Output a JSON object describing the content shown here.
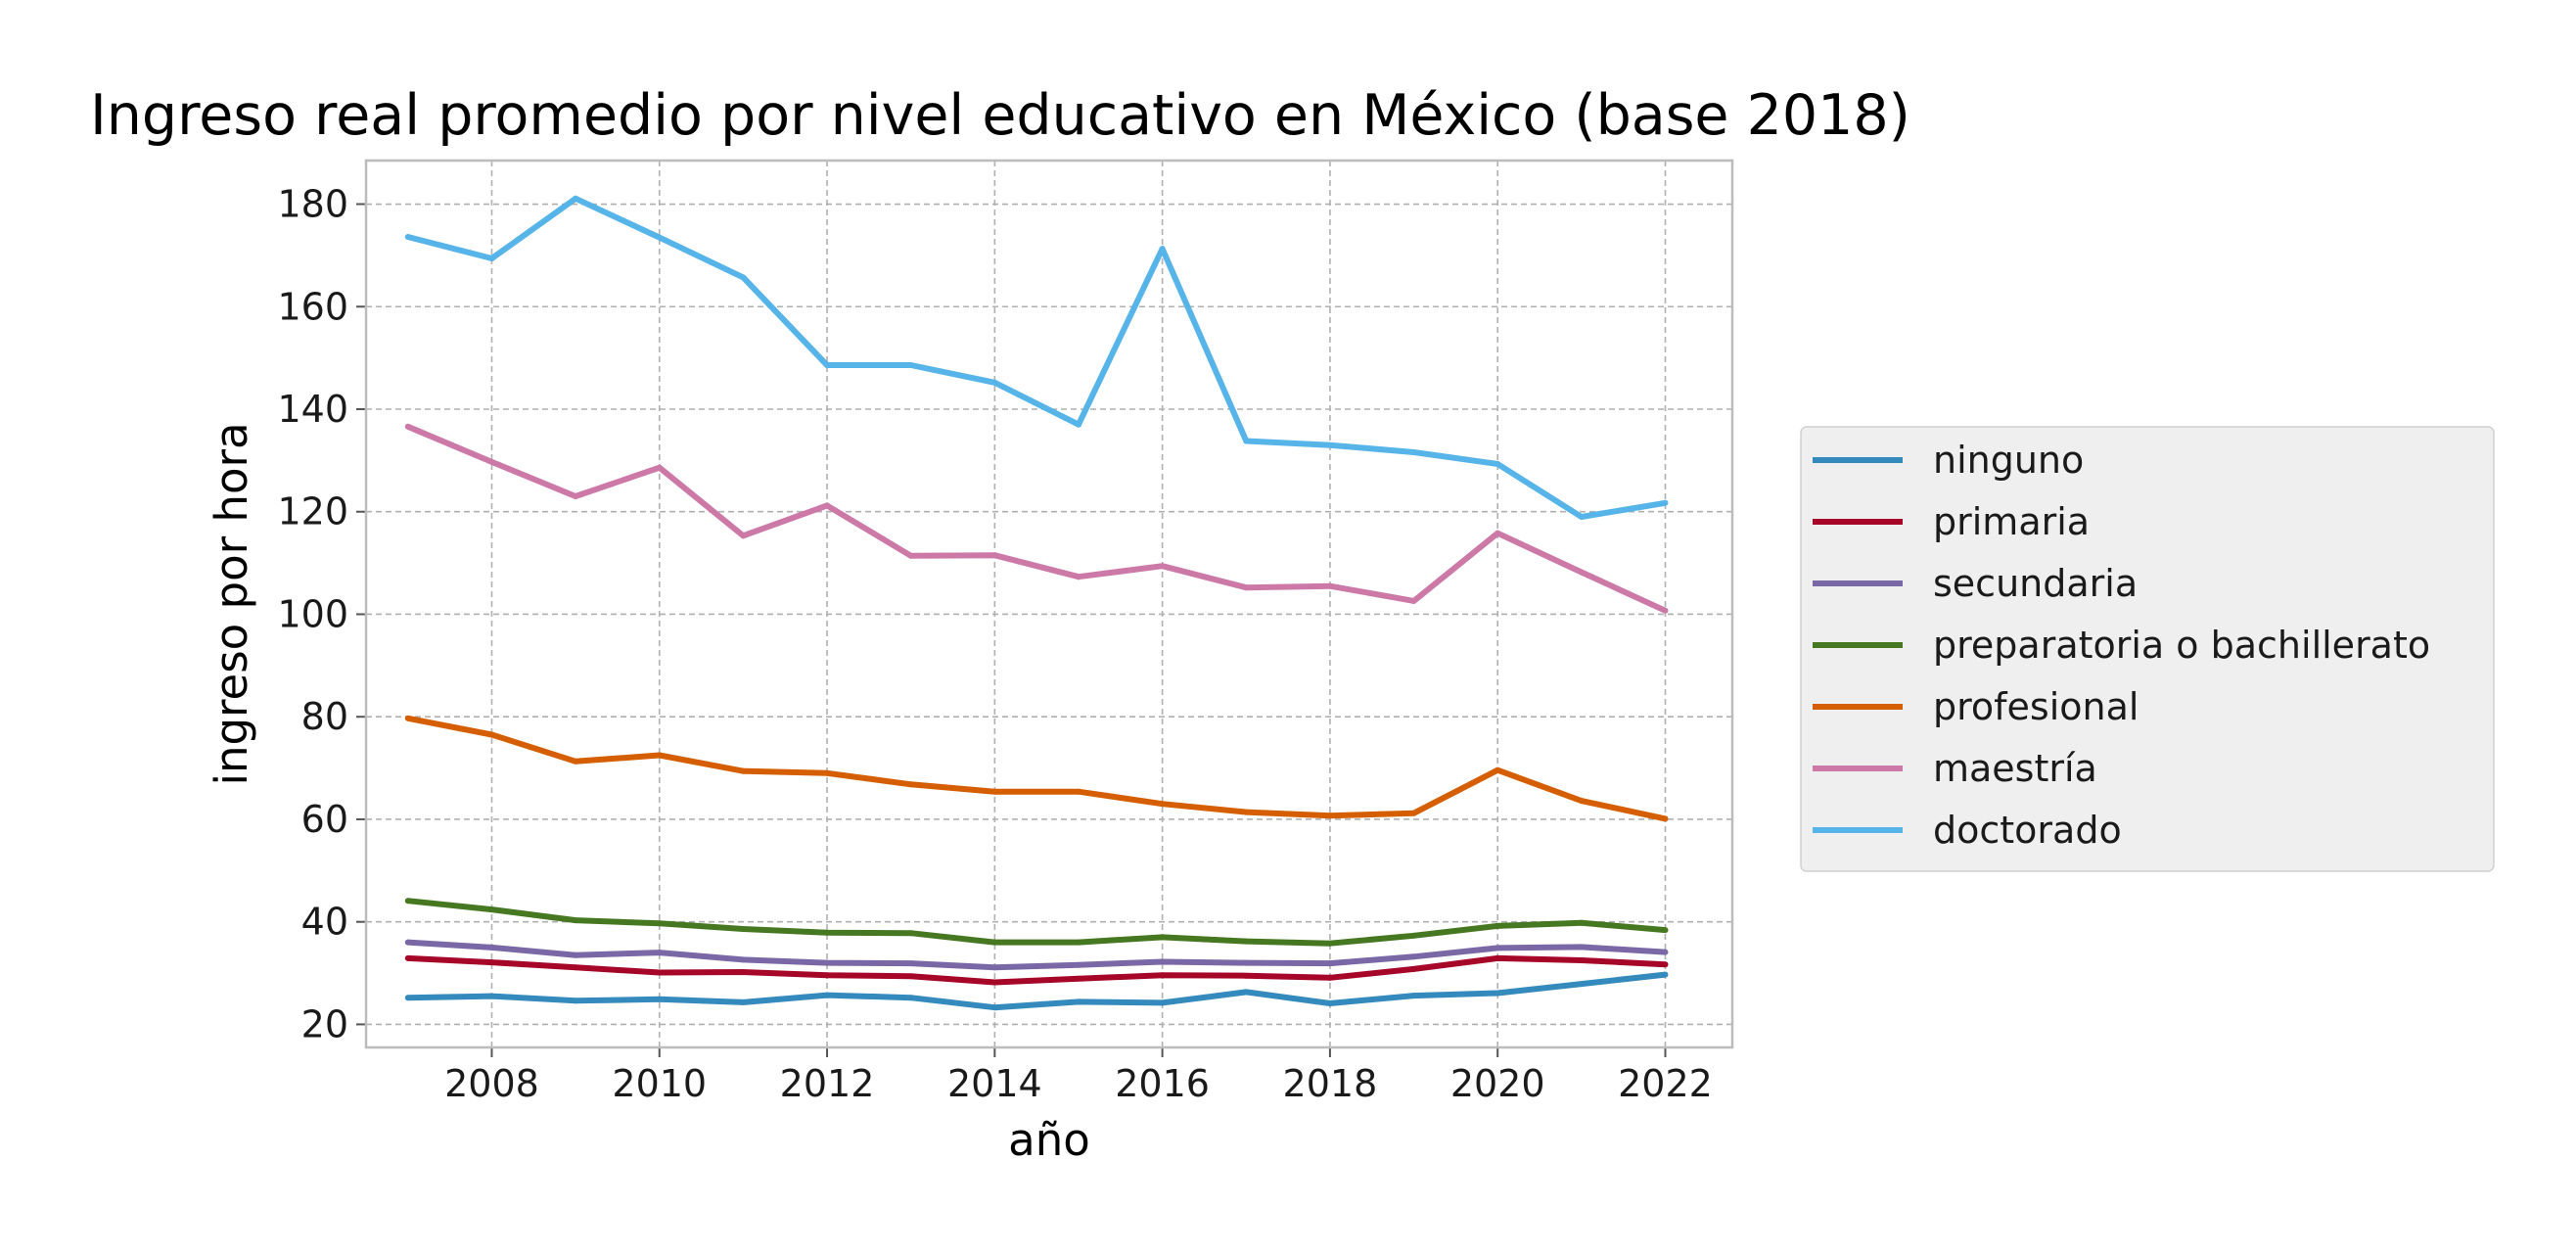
{
  "chart_data": {
    "type": "line",
    "title": "Ingreso real promedio por nivel educativo en México (base 2018)",
    "xlabel": "año",
    "ylabel": "ingreso por hora",
    "x": [
      2007,
      2008,
      2009,
      2010,
      2011,
      2012,
      2013,
      2014,
      2015,
      2016,
      2017,
      2018,
      2019,
      2020,
      2021,
      2022
    ],
    "xlim": [
      2006.5,
      2022.8
    ],
    "ylim": [
      15.5,
      188.5
    ],
    "xticks": [
      2008,
      2010,
      2012,
      2014,
      2016,
      2018,
      2020,
      2022
    ],
    "yticks": [
      20,
      40,
      60,
      80,
      100,
      120,
      140,
      160,
      180
    ],
    "grid": true,
    "legend_position": "outside-right",
    "series": [
      {
        "name": "ninguno",
        "color": "#348abd",
        "values": [
          25.2,
          25.5,
          24.6,
          24.9,
          24.3,
          25.7,
          25.2,
          23.3,
          24.4,
          24.2,
          26.3,
          24.1,
          25.6,
          26.1,
          27.9,
          29.7
        ]
      },
      {
        "name": "primaria",
        "color": "#a60628",
        "values": [
          32.9,
          32.1,
          31.1,
          30.1,
          30.2,
          29.6,
          29.4,
          28.2,
          28.9,
          29.6,
          29.5,
          29.1,
          30.8,
          32.9,
          32.5,
          31.7
        ]
      },
      {
        "name": "secundaria",
        "color": "#7a68a6",
        "values": [
          36.0,
          35.0,
          33.5,
          34.0,
          32.6,
          32.0,
          31.9,
          31.1,
          31.6,
          32.2,
          32.0,
          31.9,
          33.2,
          34.9,
          35.1,
          34.1
        ]
      },
      {
        "name": "preparatoria o bachillerato",
        "color": "#467821",
        "values": [
          44.1,
          42.4,
          40.3,
          39.7,
          38.6,
          37.9,
          37.8,
          36.0,
          36.0,
          37.0,
          36.2,
          35.8,
          37.3,
          39.2,
          39.8,
          38.4
        ]
      },
      {
        "name": "profesional",
        "color": "#d55e00",
        "values": [
          79.7,
          76.5,
          71.3,
          72.5,
          69.4,
          69.0,
          66.8,
          65.4,
          65.4,
          63.0,
          61.4,
          60.7,
          61.2,
          69.6,
          63.6,
          60.1
        ]
      },
      {
        "name": "maestría",
        "color": "#cc79a7",
        "values": [
          136.6,
          129.7,
          123.0,
          128.6,
          115.3,
          121.2,
          111.4,
          111.5,
          107.3,
          109.4,
          105.2,
          105.5,
          102.6,
          115.8,
          108.2,
          100.7
        ]
      },
      {
        "name": "doctorado",
        "color": "#56b4e9",
        "values": [
          173.6,
          169.4,
          181.1,
          173.5,
          165.7,
          148.6,
          148.6,
          145.2,
          137.0,
          171.3,
          133.8,
          133.0,
          131.6,
          129.3,
          119.0,
          121.7
        ]
      }
    ]
  }
}
